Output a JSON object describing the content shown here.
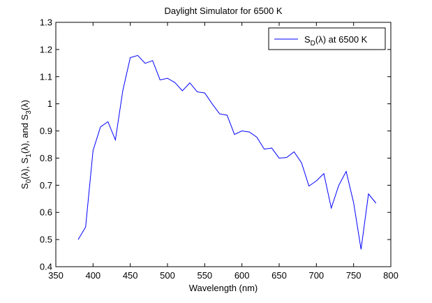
{
  "chart_data": {
    "type": "line",
    "title": "Daylight Simulator for 6500 K",
    "xlabel": "Wavelength (nm)",
    "ylabel": "S0(λ), S1(λ), and S3(λ)",
    "ylabel_parts": [
      {
        "text": "S",
        "sub": false
      },
      {
        "text": "0",
        "sub": true
      },
      {
        "text": "(λ), S",
        "sub": false
      },
      {
        "text": "1",
        "sub": true
      },
      {
        "text": "(λ), and S",
        "sub": false
      },
      {
        "text": "3",
        "sub": true
      },
      {
        "text": "(λ)",
        "sub": false
      }
    ],
    "xlim": [
      350,
      800
    ],
    "ylim": [
      0.4,
      1.3
    ],
    "xticks": [
      350,
      400,
      450,
      500,
      550,
      600,
      650,
      700,
      750,
      800
    ],
    "xtick_labels": [
      "350",
      "400",
      "450",
      "500",
      "550",
      "600",
      "650",
      "700",
      "750",
      "800"
    ],
    "yticks": [
      0.4,
      0.5,
      0.6,
      0.7,
      0.8,
      0.9,
      1.0,
      1.1,
      1.2,
      1.3
    ],
    "ytick_labels": [
      "0.4",
      "0.5",
      "0.6",
      "0.7",
      "0.8",
      "0.9",
      "1",
      "1.1",
      "1.2",
      "1.3"
    ],
    "grid": false,
    "legend_position": "top-right",
    "series": [
      {
        "name": "SD(λ) at 6500 K",
        "name_parts": [
          {
            "text": "S",
            "sub": false
          },
          {
            "text": "D",
            "sub": true
          },
          {
            "text": "(λ) at 6500 K",
            "sub": false
          }
        ],
        "color": "#0000ff",
        "x": [
          380,
          390,
          400,
          410,
          420,
          430,
          440,
          450,
          460,
          470,
          480,
          490,
          500,
          510,
          520,
          530,
          540,
          550,
          560,
          570,
          580,
          590,
          600,
          610,
          620,
          630,
          640,
          650,
          660,
          670,
          680,
          690,
          700,
          710,
          720,
          730,
          740,
          750,
          760,
          770,
          780
        ],
        "y": [
          0.5,
          0.546,
          0.828,
          0.915,
          0.934,
          0.867,
          1.049,
          1.17,
          1.178,
          1.149,
          1.159,
          1.088,
          1.094,
          1.078,
          1.048,
          1.077,
          1.044,
          1.04,
          1.0,
          0.963,
          0.958,
          0.887,
          0.9,
          0.896,
          0.877,
          0.833,
          0.837,
          0.8,
          0.802,
          0.823,
          0.783,
          0.697,
          0.716,
          0.743,
          0.616,
          0.699,
          0.751,
          0.636,
          0.464,
          0.668,
          0.634
        ]
      }
    ]
  }
}
